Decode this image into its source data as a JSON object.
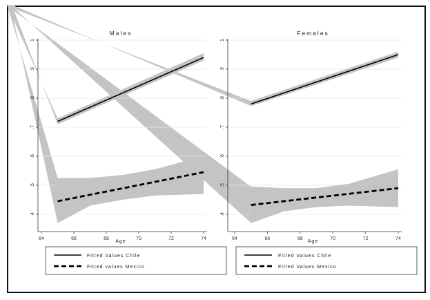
{
  "chart_data": {
    "type": "line",
    "xlabel": "Age",
    "xlim": [
      64,
      74
    ],
    "ylim": [
      0.35,
      1.0
    ],
    "x_ticks": [
      "64",
      "66",
      "68",
      "70",
      "72",
      "74"
    ],
    "y_ticks": [
      ".4",
      ".5",
      ".6",
      ".7",
      ".8",
      ".9",
      "1"
    ],
    "legend": {
      "placement": "bottom",
      "left": [
        {
          "series": "Fitted Values Chile",
          "label": "Fitted Values Chile",
          "style": "solid"
        },
        {
          "series": "Fitted values Mexico",
          "label": "Fitted values Mexico",
          "style": "dashed"
        }
      ],
      "right": [
        {
          "series": "Fitted Values Chile",
          "label": "Fitted Values Chile",
          "style": "solid"
        },
        {
          "series": "Fitted Values Mexico",
          "label": "Fitted Values Mexico",
          "style": "dashed"
        }
      ]
    },
    "panels": [
      {
        "title": "Males",
        "series": [
          {
            "name": "Fitted Values Chile",
            "style": "solid",
            "x": [
              65,
              74
            ],
            "y": [
              0.72,
              0.94
            ],
            "ci": {
              "x": [
                65,
                74
              ],
              "lower": [
                0.71,
                0.93
              ],
              "upper": [
                0.73,
                0.955
              ]
            }
          },
          {
            "name": "Fitted values Mexico",
            "style": "dashed",
            "x": [
              65,
              74
            ],
            "y": [
              0.445,
              0.545
            ],
            "ci": {
              "x": [
                65,
                67,
                69,
                71,
                74
              ],
              "lower": [
                0.37,
                0.43,
                0.45,
                0.465,
                0.47
              ],
              "upper": [
                0.525,
                0.525,
                0.535,
                0.555,
                0.6
              ]
            }
          }
        ]
      },
      {
        "title": "Females",
        "series": [
          {
            "name": "Fitted Values Chile",
            "style": "solid",
            "x": [
              65,
              74
            ],
            "y": [
              0.78,
              0.95
            ],
            "ci": {
              "x": [
                65,
                74
              ],
              "lower": [
                0.773,
                0.94
              ],
              "upper": [
                0.79,
                0.96
              ]
            }
          },
          {
            "name": "Fitted Values Mexico",
            "style": "dashed",
            "x": [
              65,
              74
            ],
            "y": [
              0.432,
              0.49
            ],
            "ci": {
              "x": [
                65,
                67,
                69,
                71,
                74
              ],
              "lower": [
                0.37,
                0.41,
                0.425,
                0.43,
                0.425
              ],
              "upper": [
                0.495,
                0.49,
                0.49,
                0.505,
                0.555
              ]
            }
          }
        ]
      }
    ]
  }
}
